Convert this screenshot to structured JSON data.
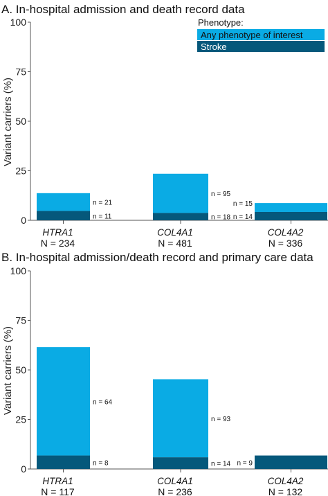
{
  "colors": {
    "any": "#0aabe4",
    "stroke": "#05587b",
    "axis": "#555555"
  },
  "legend": {
    "title": "Phenotype:",
    "entries": [
      {
        "key": "any",
        "label": "Any phenotype of interest"
      },
      {
        "key": "stroke",
        "label": "Stroke"
      }
    ]
  },
  "chart_data": [
    {
      "type": "bar",
      "title": "A. In-hospital admission and death record data",
      "ylabel": "Variant carriers (%)",
      "ylim": [
        0,
        100
      ],
      "yticks": [
        0,
        25,
        50,
        75,
        100
      ],
      "categories": [
        {
          "gene": "HTRA1",
          "n_label": "N = 234"
        },
        {
          "gene": "COL4A1",
          "n_label": "N = 481"
        },
        {
          "gene": "COL4A2",
          "n_label": "N = 336"
        }
      ],
      "series": [
        {
          "name": "Any phenotype of interest",
          "key": "any",
          "values": [
            9.0,
            19.8,
            4.5
          ],
          "labels": [
            "n = 21",
            "n = 95",
            "n = 15"
          ]
        },
        {
          "name": "Stroke",
          "key": "stroke",
          "values": [
            4.7,
            3.7,
            4.2
          ],
          "labels": [
            "n = 11",
            "n = 18",
            "n = 14"
          ]
        }
      ]
    },
    {
      "type": "bar",
      "title": "B. In-hospital admission/death record and primary care data",
      "ylabel": "Variant carriers (%)",
      "ylim": [
        0,
        100
      ],
      "yticks": [
        0,
        25,
        50,
        75,
        100
      ],
      "categories": [
        {
          "gene": "HTRA1",
          "n_label": "N = 117"
        },
        {
          "gene": "COL4A1",
          "n_label": "N = 236"
        },
        {
          "gene": "COL4A2",
          "n_label": "N = 132"
        }
      ],
      "series": [
        {
          "name": "Any phenotype of interest",
          "key": "any",
          "values": [
            54.7,
            39.4,
            0
          ],
          "labels": [
            "n = 64",
            "n = 93",
            ""
          ]
        },
        {
          "name": "Stroke",
          "key": "stroke",
          "values": [
            6.8,
            5.9,
            6.8
          ],
          "labels": [
            "n = 8",
            "n = 14",
            "n = 9"
          ]
        }
      ]
    }
  ]
}
